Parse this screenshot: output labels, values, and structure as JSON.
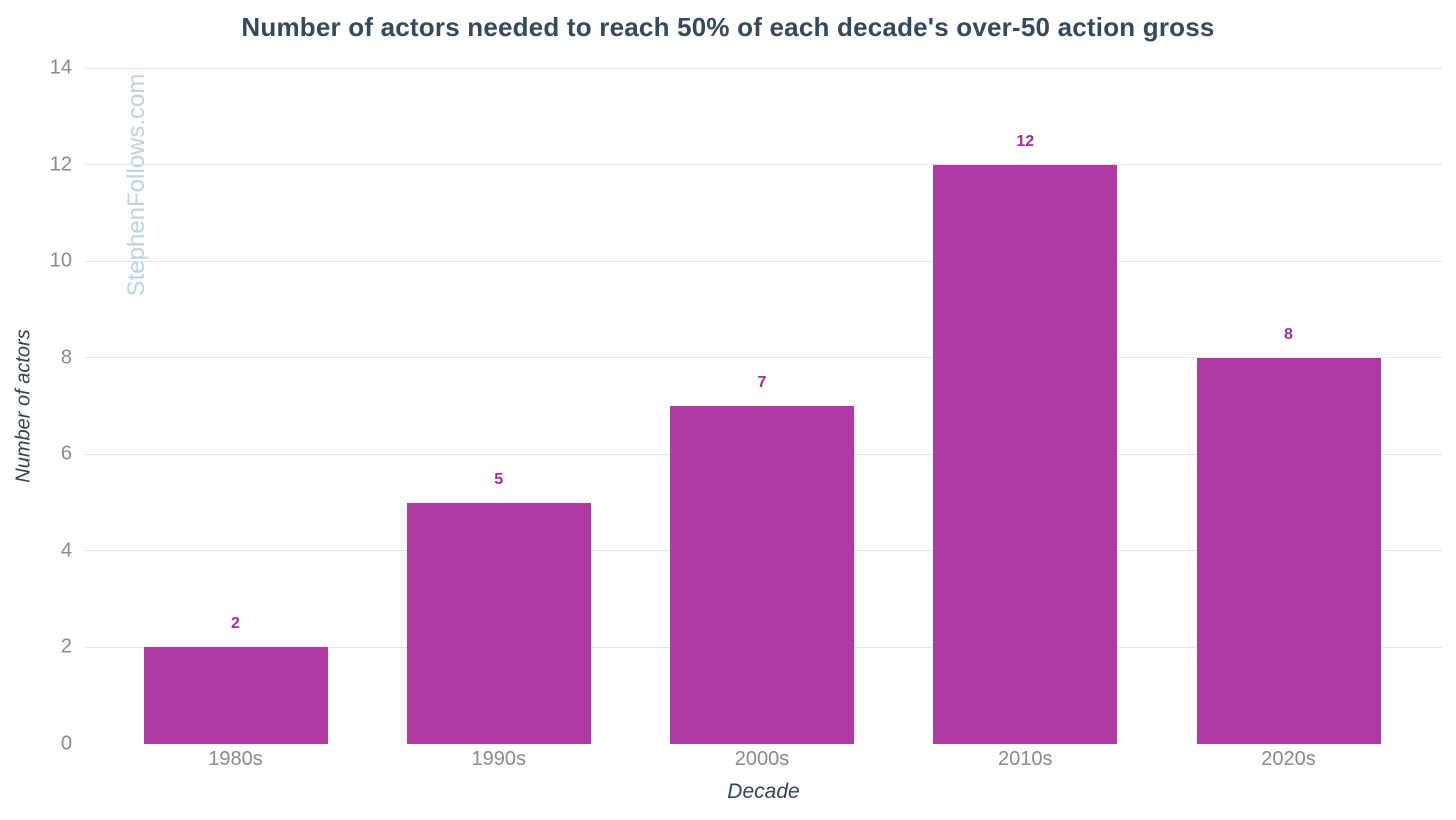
{
  "watermark": "StephenFollows.com",
  "chart_data": {
    "type": "bar",
    "title": "Number of actors needed to reach 50% of each decade's over-50 action gross",
    "xlabel": "Decade",
    "ylabel": "Number of actors",
    "categories": [
      "1980s",
      "1990s",
      "2000s",
      "2010s",
      "2020s"
    ],
    "values": [
      2,
      5,
      7,
      12,
      8
    ],
    "ylim": [
      0,
      14
    ],
    "yticks": [
      0,
      2,
      4,
      6,
      8,
      10,
      12,
      14
    ],
    "grid": true,
    "legend": "none",
    "colors": {
      "bar_fill": "#ad3ba2",
      "value_label": "#a02d9a",
      "title_text": "#34495e",
      "axis_title_text": "#2f4458",
      "tick_label_text": "#8a8a8a",
      "gridline": "#e4e4e4",
      "watermark_text": "#bdd3e6",
      "background": "#ffffff"
    }
  }
}
